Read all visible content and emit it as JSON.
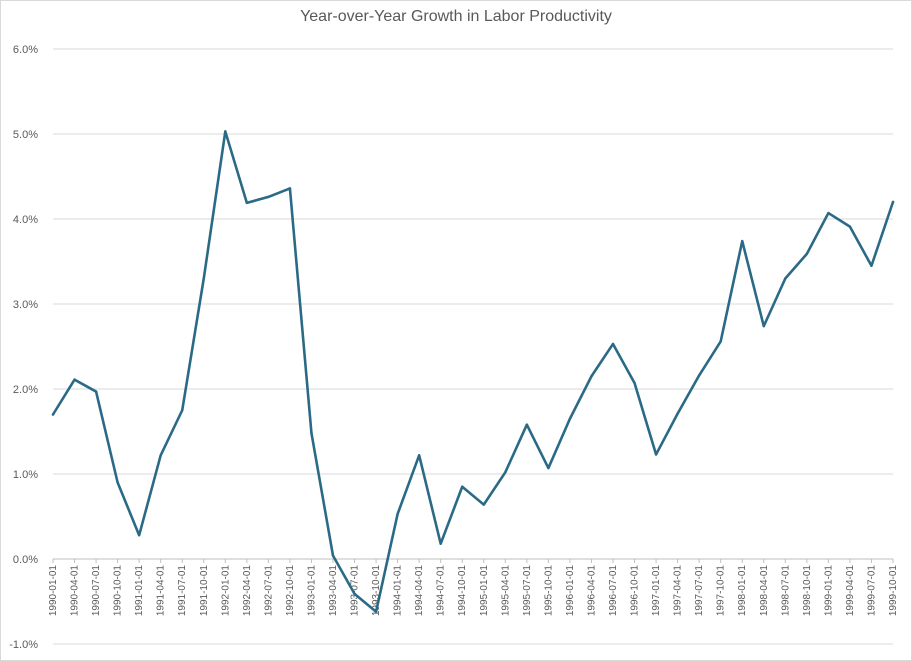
{
  "chart_data": {
    "type": "line",
    "title": "Year-over-Year Growth in Labor Productivity",
    "xlabel": "",
    "ylabel": "",
    "ylim": [
      -1.0,
      6.0
    ],
    "y_ticks": [
      "-1.0%",
      "0.0%",
      "1.0%",
      "2.0%",
      "3.0%",
      "4.0%",
      "5.0%",
      "6.0%"
    ],
    "grid": true,
    "legend": "none",
    "line_color": "#2b6a87",
    "x": [
      "1990-01-01",
      "1990-04-01",
      "1990-07-01",
      "1990-10-01",
      "1991-01-01",
      "1991-04-01",
      "1991-07-01",
      "1991-10-01",
      "1992-01-01",
      "1992-04-01",
      "1992-07-01",
      "1992-10-01",
      "1993-01-01",
      "1993-04-01",
      "1993-07-01",
      "1993-10-01",
      "1994-01-01",
      "1994-04-01",
      "1994-07-01",
      "1994-10-01",
      "1995-01-01",
      "1995-04-01",
      "1995-07-01",
      "1995-10-01",
      "1996-01-01",
      "1996-04-01",
      "1996-07-01",
      "1996-10-01",
      "1997-01-01",
      "1997-04-01",
      "1997-07-01",
      "1997-10-01",
      "1998-01-01",
      "1998-04-01",
      "1998-07-01",
      "1998-10-01",
      "1999-01-01",
      "1999-04-01",
      "1999-07-01",
      "1999-10-01"
    ],
    "series": [
      {
        "values": [
          1.7,
          2.11,
          1.97,
          0.9,
          0.28,
          1.22,
          1.75,
          3.3,
          5.03,
          4.19,
          4.26,
          4.36,
          1.48,
          0.04,
          -0.41,
          -0.62,
          0.53,
          1.22,
          0.18,
          0.85,
          0.64,
          1.02,
          1.58,
          1.07,
          1.65,
          2.15,
          2.53,
          2.07,
          1.23,
          1.71,
          2.16,
          2.56,
          3.74,
          2.74,
          3.3,
          3.59,
          4.07,
          3.91,
          3.45,
          4.2
        ]
      }
    ]
  }
}
